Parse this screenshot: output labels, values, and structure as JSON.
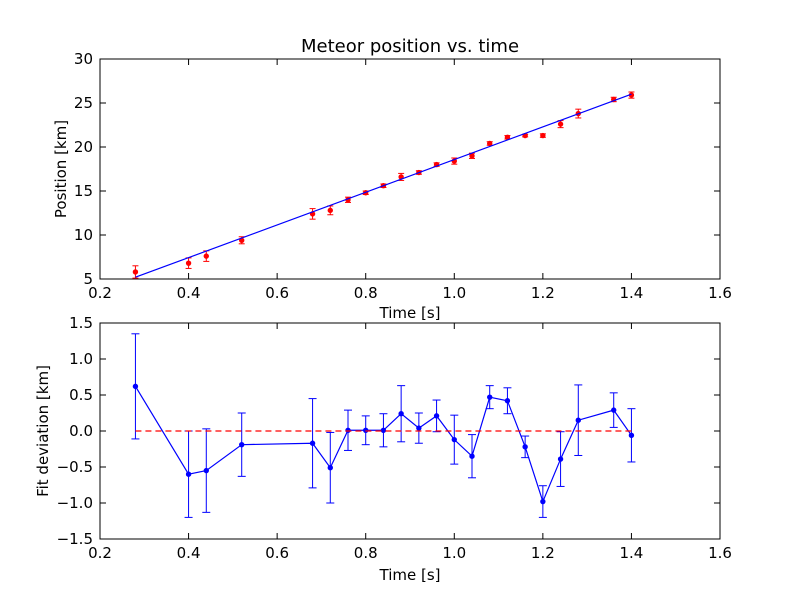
{
  "chart_data": [
    {
      "type": "scatter",
      "title": "Meteor position vs. time",
      "xlabel": "Time [s]",
      "ylabel": "Position [km]",
      "xlim": [
        0.2,
        1.6
      ],
      "ylim": [
        5,
        30
      ],
      "xticks": [
        "0.2",
        "0.4",
        "0.6",
        "0.8",
        "1.0",
        "1.2",
        "1.4",
        "1.6"
      ],
      "yticks": [
        "5",
        "10",
        "15",
        "20",
        "25",
        "30"
      ],
      "grid": false,
      "colors": {
        "points": "#ff0000",
        "fit": "#0000ff"
      },
      "series": [
        {
          "kind": "points_with_error_bars",
          "x": [
            0.28,
            0.4,
            0.44,
            0.52,
            0.68,
            0.72,
            0.76,
            0.8,
            0.84,
            0.88,
            0.92,
            0.96,
            1.0,
            1.04,
            1.08,
            1.12,
            1.16,
            1.2,
            1.24,
            1.28,
            1.36,
            1.4
          ],
          "y": [
            5.8,
            6.8,
            7.6,
            9.4,
            12.4,
            12.8,
            14.0,
            14.8,
            15.6,
            16.6,
            17.1,
            18.0,
            18.4,
            19.0,
            20.4,
            21.1,
            21.3,
            21.3,
            22.6,
            23.8,
            25.4,
            25.9
          ],
          "yerr": [
            0.7,
            0.6,
            0.6,
            0.4,
            0.6,
            0.5,
            0.3,
            0.2,
            0.2,
            0.4,
            0.2,
            0.2,
            0.35,
            0.3,
            0.2,
            0.2,
            0.15,
            0.2,
            0.4,
            0.5,
            0.25,
            0.35
          ]
        },
        {
          "kind": "fit_line",
          "x": [
            0.28,
            1.4
          ],
          "y": [
            5.2,
            26.0
          ]
        }
      ]
    },
    {
      "type": "line",
      "title": "",
      "xlabel": "Time [s]",
      "ylabel": "Fit deviation [km]",
      "xlim": [
        0.2,
        1.6
      ],
      "ylim": [
        -1.5,
        1.5
      ],
      "xticks": [
        "0.2",
        "0.4",
        "0.6",
        "0.8",
        "1.0",
        "1.2",
        "1.4",
        "1.6"
      ],
      "yticks": [
        "−1.5",
        "−1.0",
        "−0.5",
        "0.0",
        "0.5",
        "1.0",
        "1.5"
      ],
      "grid": false,
      "colors": {
        "line": "#0000ff",
        "zero": "#ff0000"
      },
      "series": [
        {
          "kind": "line_with_error_bars",
          "x": [
            0.28,
            0.4,
            0.44,
            0.52,
            0.68,
            0.72,
            0.76,
            0.8,
            0.84,
            0.88,
            0.92,
            0.96,
            1.0,
            1.04,
            1.08,
            1.12,
            1.16,
            1.2,
            1.24,
            1.28,
            1.36,
            1.4
          ],
          "y": [
            0.62,
            -0.6,
            -0.55,
            -0.19,
            -0.17,
            -0.51,
            0.01,
            0.01,
            0.01,
            0.24,
            0.04,
            0.21,
            -0.12,
            -0.35,
            0.47,
            0.42,
            -0.22,
            -0.98,
            -0.39,
            0.15,
            0.29,
            -0.06
          ],
          "yerr": [
            0.73,
            0.6,
            0.58,
            0.44,
            0.62,
            0.49,
            0.28,
            0.2,
            0.23,
            0.39,
            0.21,
            0.22,
            0.34,
            0.3,
            0.16,
            0.18,
            0.15,
            0.22,
            0.38,
            0.49,
            0.24,
            0.37
          ]
        },
        {
          "kind": "zero_line",
          "x": [
            0.28,
            1.4
          ],
          "y": [
            0.0,
            0.0
          ],
          "dashed": true
        }
      ]
    }
  ]
}
